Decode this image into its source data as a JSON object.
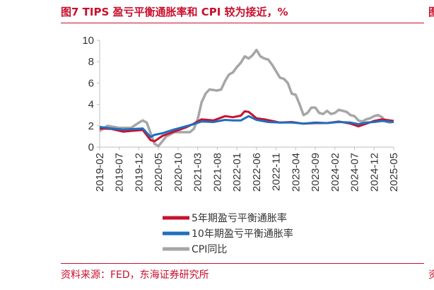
{
  "header": {
    "title": "图7  TIPS 盈亏平衡通胀率和 CPI 较为接近，%",
    "edge_glyph": "图"
  },
  "footer": {
    "source": "资料来源：FED，东海证券研究所",
    "edge_glyph": "资"
  },
  "colors": {
    "series_5y": "#c8102e",
    "series_10y": "#1f6fbf",
    "series_cpi": "#a6a6a6",
    "brand": "#c8102e"
  },
  "chart_data": {
    "type": "line",
    "title": "",
    "xlabel": "",
    "ylabel": "",
    "ylim": [
      0,
      10
    ],
    "yticks": [
      "0",
      "2",
      "4",
      "6",
      "8",
      "10"
    ],
    "xticks": [
      "2019-02",
      "2019-07",
      "2019-12",
      "2020-05",
      "2020-10",
      "2021-03",
      "2021-08",
      "2022-01",
      "2022-06",
      "2022-11",
      "2023-04",
      "2023-09",
      "2024-02",
      "2024-07",
      "2024-12",
      "2025-05"
    ],
    "legend_position": "bottom",
    "grid": false,
    "series": [
      {
        "name": "5年期盈亏平衡通胀率",
        "color": "#c8102e",
        "points": [
          [
            "2019-02",
            1.75
          ],
          [
            "2019-05",
            1.7
          ],
          [
            "2019-08",
            1.45
          ],
          [
            "2019-11",
            1.55
          ],
          [
            "2020-01",
            1.6
          ],
          [
            "2020-03",
            0.65
          ],
          [
            "2020-04",
            0.55
          ],
          [
            "2020-06",
            1.05
          ],
          [
            "2020-09",
            1.45
          ],
          [
            "2020-12",
            1.85
          ],
          [
            "2021-02",
            2.2
          ],
          [
            "2021-04",
            2.6
          ],
          [
            "2021-07",
            2.5
          ],
          [
            "2021-10",
            2.9
          ],
          [
            "2021-12",
            2.8
          ],
          [
            "2022-02",
            2.95
          ],
          [
            "2022-03",
            3.35
          ],
          [
            "2022-04",
            3.3
          ],
          [
            "2022-06",
            2.7
          ],
          [
            "2022-08",
            2.6
          ],
          [
            "2022-10",
            2.45
          ],
          [
            "2022-12",
            2.3
          ],
          [
            "2023-03",
            2.35
          ],
          [
            "2023-06",
            2.2
          ],
          [
            "2023-09",
            2.25
          ],
          [
            "2023-12",
            2.25
          ],
          [
            "2024-03",
            2.4
          ],
          [
            "2024-06",
            2.2
          ],
          [
            "2024-08",
            1.95
          ],
          [
            "2024-10",
            2.2
          ],
          [
            "2024-12",
            2.45
          ],
          [
            "2025-02",
            2.6
          ],
          [
            "2025-05",
            2.45
          ]
        ]
      },
      {
        "name": "10年期盈亏平衡通胀率",
        "color": "#1f6fbf",
        "points": [
          [
            "2019-02",
            1.9
          ],
          [
            "2019-05",
            1.75
          ],
          [
            "2019-08",
            1.65
          ],
          [
            "2019-11",
            1.7
          ],
          [
            "2020-01",
            1.75
          ],
          [
            "2020-03",
            0.95
          ],
          [
            "2020-04",
            1.15
          ],
          [
            "2020-06",
            1.3
          ],
          [
            "2020-09",
            1.65
          ],
          [
            "2020-12",
            1.95
          ],
          [
            "2021-02",
            2.15
          ],
          [
            "2021-04",
            2.4
          ],
          [
            "2021-07",
            2.35
          ],
          [
            "2021-10",
            2.55
          ],
          [
            "2021-12",
            2.5
          ],
          [
            "2022-02",
            2.5
          ],
          [
            "2022-04",
            2.9
          ],
          [
            "2022-06",
            2.55
          ],
          [
            "2022-09",
            2.35
          ],
          [
            "2022-12",
            2.3
          ],
          [
            "2023-03",
            2.3
          ],
          [
            "2023-06",
            2.2
          ],
          [
            "2023-09",
            2.3
          ],
          [
            "2023-12",
            2.25
          ],
          [
            "2024-03",
            2.35
          ],
          [
            "2024-06",
            2.3
          ],
          [
            "2024-08",
            2.15
          ],
          [
            "2024-10",
            2.3
          ],
          [
            "2024-12",
            2.35
          ],
          [
            "2025-02",
            2.45
          ],
          [
            "2025-05",
            2.35
          ]
        ]
      },
      {
        "name": "CPI同比",
        "color": "#a6a6a6",
        "points": [
          [
            "2019-02",
            1.5
          ],
          [
            "2019-04",
            2.0
          ],
          [
            "2019-07",
            1.8
          ],
          [
            "2019-10",
            1.8
          ],
          [
            "2019-12",
            2.3
          ],
          [
            "2020-01",
            2.5
          ],
          [
            "2020-02",
            2.3
          ],
          [
            "2020-04",
            0.3
          ],
          [
            "2020-05",
            0.1
          ],
          [
            "2020-07",
            1.0
          ],
          [
            "2020-09",
            1.4
          ],
          [
            "2020-12",
            1.4
          ],
          [
            "2021-01",
            1.4
          ],
          [
            "2021-02",
            1.7
          ],
          [
            "2021-03",
            2.6
          ],
          [
            "2021-04",
            4.2
          ],
          [
            "2021-05",
            5.0
          ],
          [
            "2021-06",
            5.4
          ],
          [
            "2021-08",
            5.3
          ],
          [
            "2021-09",
            5.4
          ],
          [
            "2021-10",
            6.2
          ],
          [
            "2021-11",
            6.8
          ],
          [
            "2021-12",
            7.0
          ],
          [
            "2022-01",
            7.5
          ],
          [
            "2022-02",
            7.9
          ],
          [
            "2022-03",
            8.5
          ],
          [
            "2022-04",
            8.3
          ],
          [
            "2022-05",
            8.6
          ],
          [
            "2022-06",
            9.1
          ],
          [
            "2022-07",
            8.5
          ],
          [
            "2022-08",
            8.3
          ],
          [
            "2022-09",
            8.2
          ],
          [
            "2022-10",
            7.7
          ],
          [
            "2022-11",
            7.1
          ],
          [
            "2022-12",
            6.5
          ],
          [
            "2023-01",
            6.4
          ],
          [
            "2023-02",
            6.0
          ],
          [
            "2023-03",
            5.0
          ],
          [
            "2023-04",
            4.9
          ],
          [
            "2023-05",
            4.0
          ],
          [
            "2023-06",
            3.0
          ],
          [
            "2023-07",
            3.2
          ],
          [
            "2023-08",
            3.7
          ],
          [
            "2023-09",
            3.7
          ],
          [
            "2023-10",
            3.2
          ],
          [
            "2023-11",
            3.1
          ],
          [
            "2023-12",
            3.4
          ],
          [
            "2024-01",
            3.1
          ],
          [
            "2024-02",
            3.2
          ],
          [
            "2024-03",
            3.5
          ],
          [
            "2024-04",
            3.4
          ],
          [
            "2024-05",
            3.3
          ],
          [
            "2024-06",
            3.0
          ],
          [
            "2024-07",
            2.9
          ],
          [
            "2024-08",
            2.5
          ],
          [
            "2024-09",
            2.4
          ],
          [
            "2024-10",
            2.6
          ],
          [
            "2024-11",
            2.7
          ],
          [
            "2024-12",
            2.9
          ],
          [
            "2025-01",
            3.0
          ],
          [
            "2025-02",
            2.8
          ],
          [
            "2025-03",
            2.4
          ],
          [
            "2025-04",
            2.3
          ],
          [
            "2025-05",
            2.4
          ]
        ]
      }
    ]
  }
}
